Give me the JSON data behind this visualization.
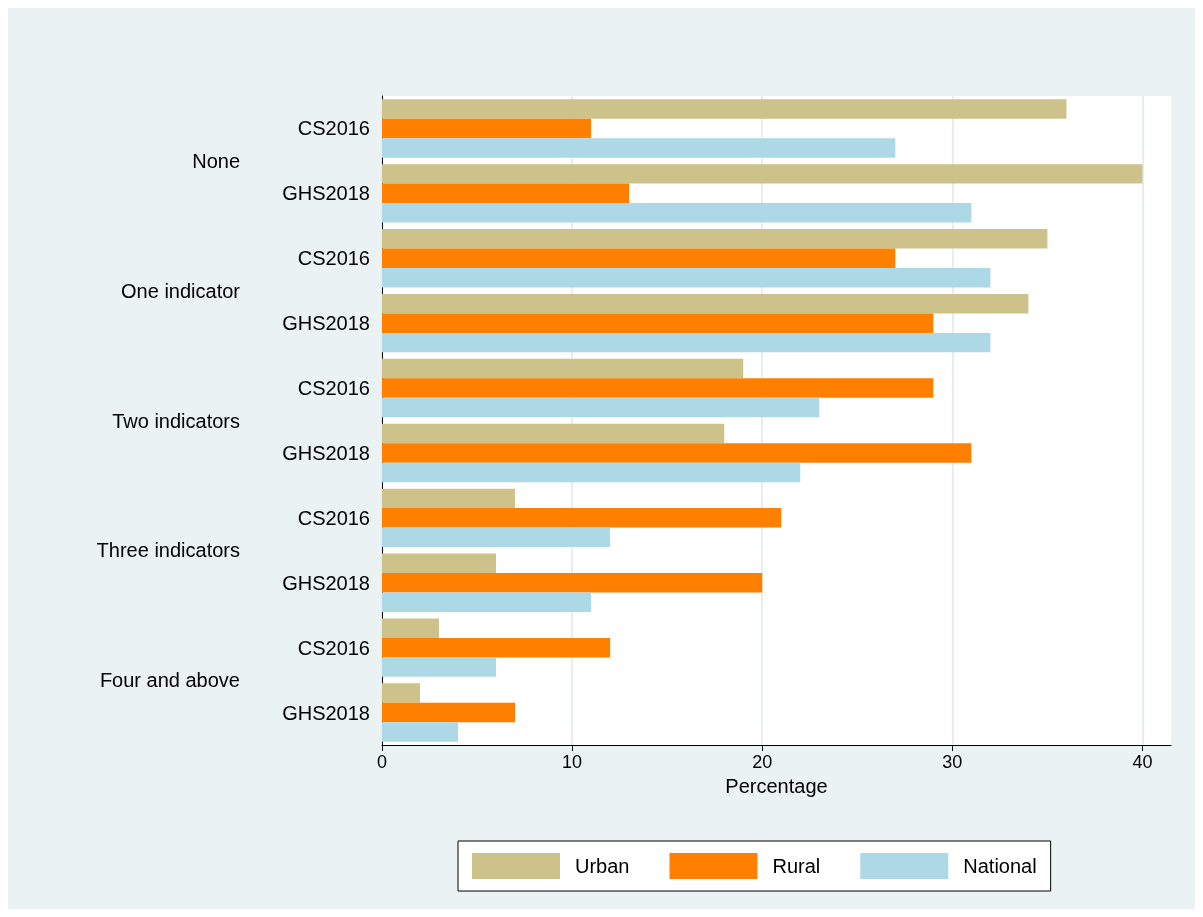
{
  "chart_data": {
    "type": "bar",
    "orientation": "horizontal",
    "categories": [
      "CS2016",
      "GHS2018",
      "CS2016",
      "GHS2018",
      "CS2016",
      "GHS2018",
      "CS2016",
      "GHS2018",
      "CS2016",
      "GHS2018"
    ],
    "annotations": [
      "None",
      "One indicator",
      "Two indicators",
      "Three indicators",
      "Four and above"
    ],
    "series": [
      {
        "name": "Urban",
        "color": "#cdc28a",
        "values": [
          36,
          40,
          35,
          34,
          19,
          18,
          7,
          6,
          3,
          2
        ]
      },
      {
        "name": "Rural",
        "color": "#ff8000",
        "values": [
          11,
          13,
          27,
          29,
          29,
          31,
          21,
          20,
          12,
          7
        ]
      },
      {
        "name": "National",
        "color": "#add8e6",
        "values": [
          27,
          31,
          32,
          32,
          23,
          22,
          12,
          11,
          6,
          4
        ]
      }
    ],
    "xlabel": "Percentage",
    "xlim": [
      0,
      41.5
    ],
    "xticks": [
      0,
      10,
      20,
      30,
      40
    ],
    "grid": "x",
    "legend": "bottom"
  }
}
